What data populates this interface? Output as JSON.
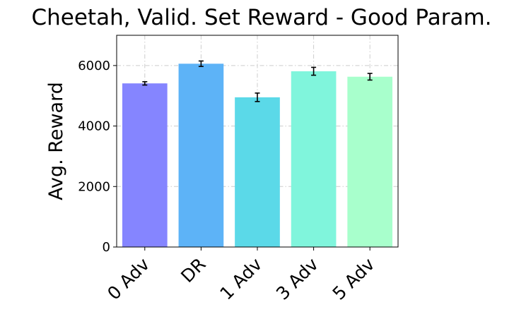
{
  "chart_data": {
    "type": "bar",
    "title": "Cheetah, Valid. Set Reward - Good Param.",
    "xlabel": "",
    "ylabel": "Avg. Reward",
    "categories": [
      "0 Adv",
      "DR",
      "1 Adv",
      "3 Adv",
      "5 Adv"
    ],
    "values": [
      5410,
      6060,
      4950,
      5810,
      5630
    ],
    "errors": [
      55,
      90,
      140,
      130,
      110
    ],
    "colors": [
      "#8585ff",
      "#5db3f7",
      "#5bd9e8",
      "#80f5dc",
      "#a8ffcc"
    ],
    "ylim": [
      0,
      7000
    ],
    "yticks": [
      0,
      2000,
      4000,
      6000
    ],
    "ytick_labels": [
      "0",
      "2000",
      "4000",
      "6000"
    ],
    "grid": true
  }
}
